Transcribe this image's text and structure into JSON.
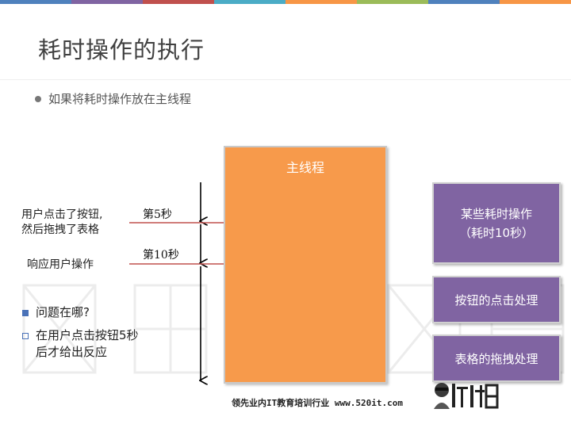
{
  "slide": {
    "title": "耗时操作的执行",
    "bullet": "如果将耗时操作放在主线程"
  },
  "main_thread": {
    "label": "主线程"
  },
  "events": [
    {
      "label_line1": "用户点击了按钮,",
      "label_line2": "然后拖拽了表格",
      "time": "第5秒"
    },
    {
      "label_line1": "响应用户操作",
      "time": "第10秒"
    }
  ],
  "tasks": [
    {
      "line1": "某些耗时操作",
      "line2": "（耗时10秒）"
    },
    {
      "line1": "按钮的点击处理"
    },
    {
      "line1": "表格的拖拽处理"
    }
  ],
  "questions": [
    {
      "line1": "问题在哪?"
    },
    {
      "line1": "在用户点击按钮5秒",
      "line2": "后才给出反应"
    }
  ],
  "footer": {
    "text": "领先业内IT教育培训行业 www.520it.com"
  },
  "colors": {
    "top_bar": [
      "#4f81bd",
      "#8064a2",
      "#c0504d",
      "#4bacc6",
      "#f79646",
      "#9bbb59",
      "#4f81bd",
      "#f79646"
    ],
    "main_thread_box": "#f79a4b",
    "task_box": "#8064a2",
    "event_line": "#c0504d",
    "bullet_square": "#4a72b8"
  },
  "icons": {
    "logo": "mascot-logo-icon"
  }
}
